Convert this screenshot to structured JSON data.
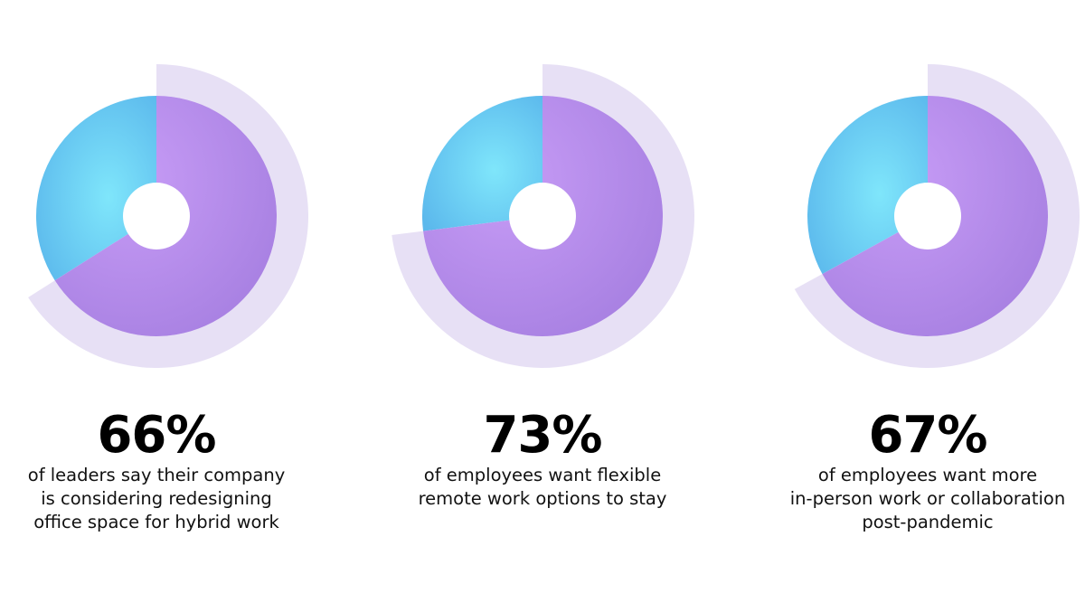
{
  "colors": {
    "slice": "#b48fe8",
    "remainder": "#67c9f0",
    "outer_arc": "#e4ddf4"
  },
  "chart_data": [
    {
      "type": "pie",
      "value": 66,
      "label": "66%",
      "caption": [
        "of leaders say their company",
        "is considering redesigning",
        "office space for hybrid work"
      ]
    },
    {
      "type": "pie",
      "value": 73,
      "label": "73%",
      "caption": [
        "of employees want flexible",
        "remote work options to stay"
      ]
    },
    {
      "type": "pie",
      "value": 67,
      "label": "67%",
      "caption": [
        "of employees want more",
        "in-person work or collaboration",
        "post-pandemic"
      ]
    }
  ]
}
